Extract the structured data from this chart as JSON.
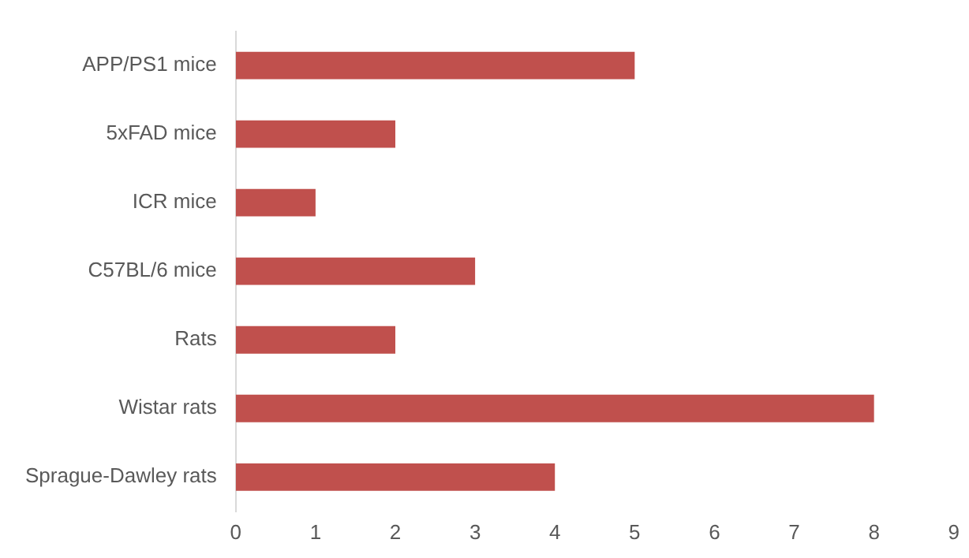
{
  "chart_data": {
    "type": "bar",
    "orientation": "horizontal",
    "categories": [
      "APP/PS1 mice",
      "5xFAD mice",
      "ICR mice",
      "C57BL/6 mice",
      "Rats",
      "Wistar rats",
      "Sprague-Dawley rats"
    ],
    "values": [
      5,
      2,
      1,
      3,
      2,
      8,
      4
    ],
    "color": "#c0504d",
    "xlim": [
      0,
      9
    ],
    "xticks": [
      0,
      1,
      2,
      3,
      4,
      5,
      6,
      7,
      8,
      9
    ],
    "grid": false
  }
}
